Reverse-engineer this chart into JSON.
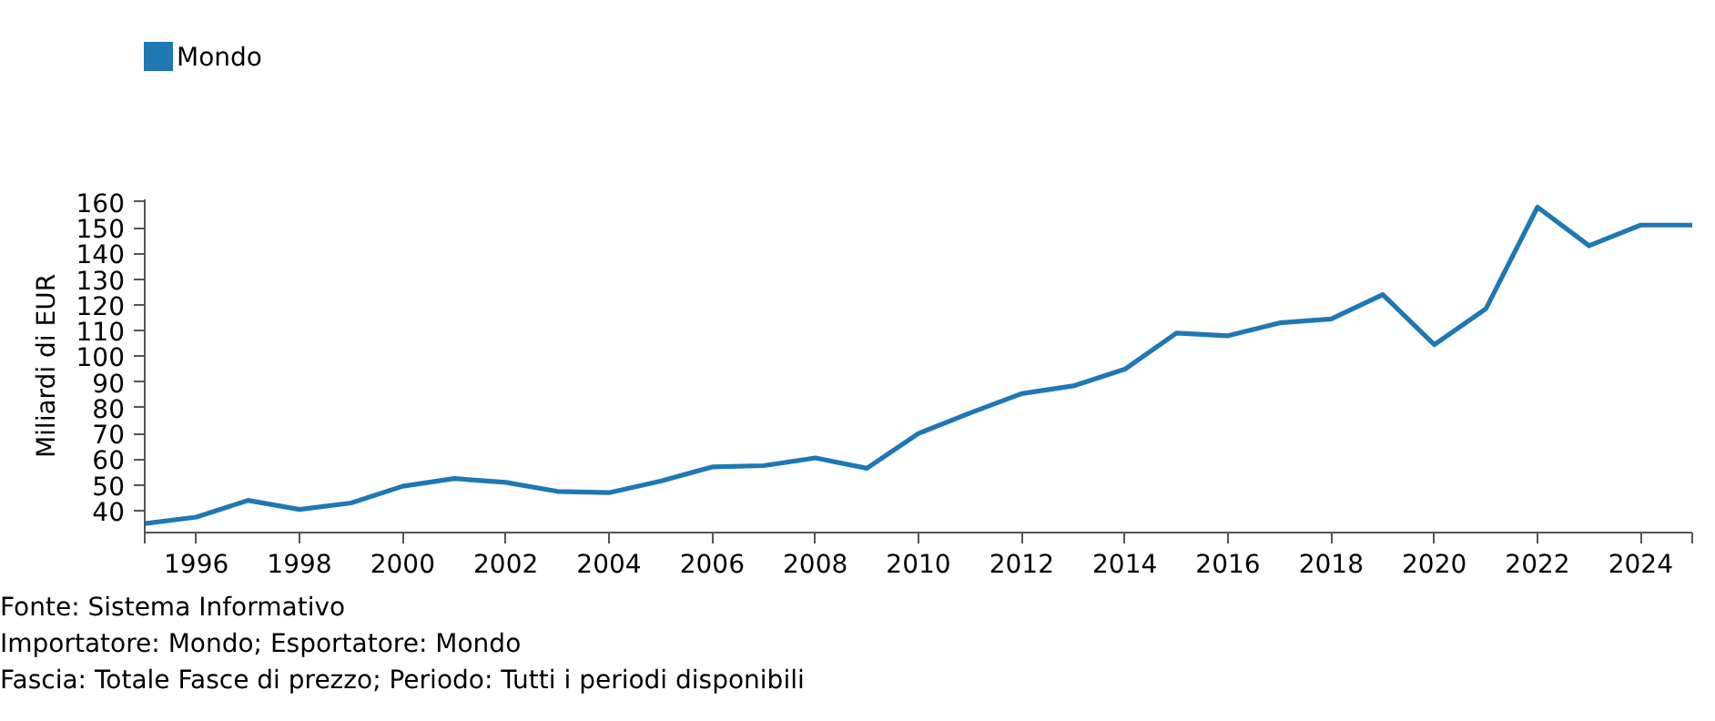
{
  "chart_data": {
    "type": "line",
    "ylabel": "Miliardi di EUR",
    "x": [
      1995,
      1996,
      1997,
      1998,
      1999,
      2000,
      2001,
      2002,
      2003,
      2004,
      2005,
      2006,
      2007,
      2008,
      2009,
      2010,
      2011,
      2012,
      2013,
      2014,
      2015,
      2016,
      2017,
      2018,
      2019,
      2020,
      2021,
      2022,
      2023,
      2024,
      2025
    ],
    "series": [
      {
        "name": "Mondo",
        "color": "#1f77b4",
        "values": [
          35,
          37.5,
          44,
          40.5,
          43,
          49.5,
          52.5,
          51,
          47.5,
          47,
          51.5,
          57,
          57.5,
          60.5,
          56.5,
          70,
          78,
          85.5,
          88.5,
          95,
          109,
          108,
          113,
          114.5,
          124,
          104.5,
          118.5,
          158,
          143,
          151,
          151
        ]
      }
    ],
    "xlim": [
      1995,
      2025
    ],
    "ylim": [
      31.5,
      161
    ],
    "xticks": [
      {
        "value": 1995,
        "label": null
      },
      1996,
      1998,
      2000,
      2002,
      2004,
      2006,
      2008,
      2010,
      2012,
      2014,
      2016,
      2018,
      2020,
      2022,
      2024,
      {
        "value": 2025,
        "label": null
      }
    ],
    "yticks": [
      40,
      50,
      60,
      70,
      80,
      90,
      100,
      110,
      120,
      130,
      140,
      150,
      160
    ],
    "grid": false,
    "legend": "top left",
    "marker": "none",
    "line_style": "solid",
    "annotations": [
      "Fonte: Sistema Informativo",
      "Importatore: Mondo; Esportatore: Mondo",
      "Fascia: Totale Fasce di prezzo; Periodo: Tutti i periodi disponibili"
    ]
  }
}
